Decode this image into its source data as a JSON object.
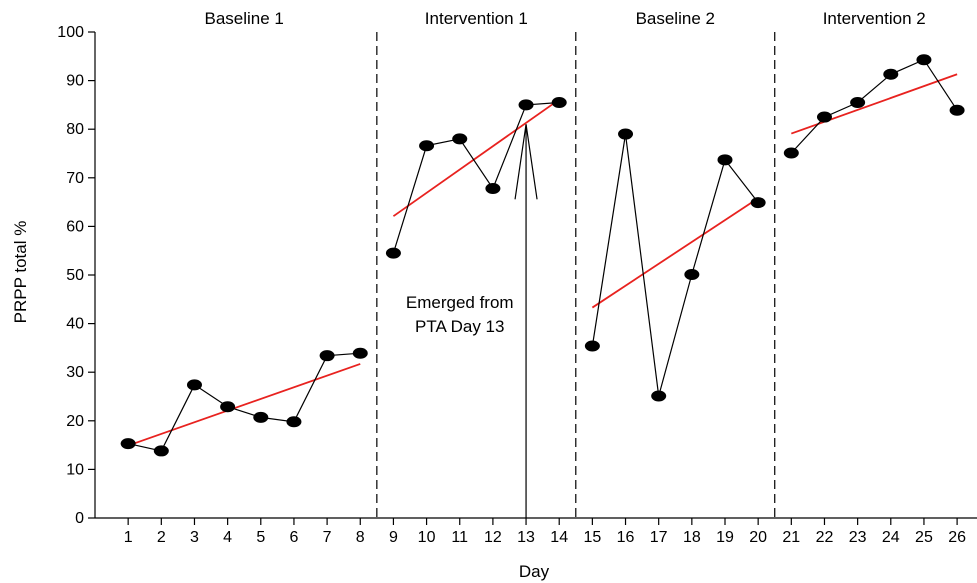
{
  "chart_data": {
    "type": "line",
    "xlabel": "Day",
    "ylabel": "PRPP total %",
    "ylim": [
      0,
      100
    ],
    "xlim": [
      0,
      26.6
    ],
    "yticks": [
      0,
      10,
      20,
      30,
      40,
      50,
      60,
      70,
      80,
      90,
      100
    ],
    "xticks": [
      1,
      2,
      3,
      4,
      5,
      6,
      7,
      8,
      9,
      10,
      11,
      12,
      13,
      14,
      15,
      16,
      17,
      18,
      19,
      20,
      21,
      22,
      23,
      24,
      25,
      26
    ],
    "grid": false,
    "phase_dividers": [
      8.5,
      14.5,
      20.5
    ],
    "phases": [
      {
        "label": "Baseline 1",
        "x_center": 4.5
      },
      {
        "label": "Intervention 1",
        "x_center": 11.5
      },
      {
        "label": "Baseline 2",
        "x_center": 17.5
      },
      {
        "label": "Intervention 2",
        "x_center": 23.5
      }
    ],
    "series": [
      {
        "segments": [
          [
            [
              1,
              15.3
            ],
            [
              2,
              13.8
            ],
            [
              3,
              27.4
            ],
            [
              4,
              22.9
            ],
            [
              5,
              20.7
            ],
            [
              6,
              19.8
            ],
            [
              7,
              33.4
            ],
            [
              8,
              33.9
            ]
          ],
          [
            [
              9,
              54.5
            ],
            [
              10,
              76.6
            ],
            [
              11,
              78.0
            ],
            [
              12,
              67.8
            ],
            [
              13,
              85.0
            ],
            [
              14,
              85.5
            ]
          ],
          [
            [
              15,
              35.4
            ],
            [
              16,
              79.0
            ],
            [
              17,
              25.1
            ],
            [
              18,
              50.1
            ],
            [
              19,
              73.7
            ],
            [
              20,
              64.9
            ]
          ],
          [
            [
              21,
              75.1
            ],
            [
              22,
              82.5
            ],
            [
              23,
              85.5
            ],
            [
              24,
              91.3
            ],
            [
              25,
              94.3
            ],
            [
              26,
              83.9
            ]
          ]
        ],
        "color": "#000000"
      }
    ],
    "trend_lines": [
      {
        "from": [
          1,
          14.9
        ],
        "to": [
          8,
          31.7
        ],
        "color": "#e8221f"
      },
      {
        "from": [
          9,
          62.1
        ],
        "to": [
          14,
          86.1
        ],
        "color": "#e8221f"
      },
      {
        "from": [
          15,
          43.3
        ],
        "to": [
          20,
          65.8
        ],
        "color": "#e8221f"
      },
      {
        "from": [
          21,
          79.1
        ],
        "to": [
          26,
          91.3
        ],
        "color": "#e8221f"
      }
    ],
    "annotations": [
      {
        "lines": [
          "Emerged from",
          "PTA Day 13"
        ],
        "arrow_to": [
          13,
          81
        ],
        "arrow_from_y": 0
      }
    ]
  }
}
